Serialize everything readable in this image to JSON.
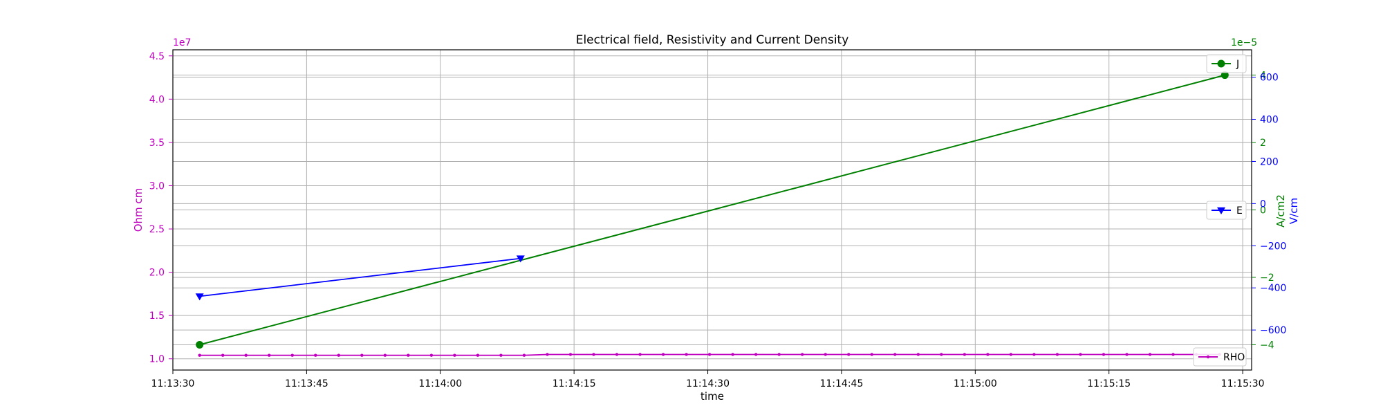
{
  "chart_data": {
    "type": "line",
    "title": "Electrical field, Resistivity and Current Density",
    "xlabel": "time",
    "x_ticks": [
      "11:13:30",
      "11:13:45",
      "11:14:00",
      "11:14:15",
      "11:14:30",
      "11:14:45",
      "11:15:00",
      "11:15:15",
      "11:15:30"
    ],
    "xlim_seconds": [
      -3,
      118
    ],
    "grid": true,
    "axes": {
      "rho": {
        "label": "Ohm cm",
        "color": "#bf00bf",
        "side": "left",
        "offset_text": "1e7",
        "ylim": [
          8.7,
          45.7
        ],
        "ticks": [
          "1.0",
          "1.5",
          "2.0",
          "2.5",
          "3.0",
          "3.5",
          "4.0",
          "4.5"
        ],
        "tick_values": [
          10,
          15,
          20,
          25,
          30,
          35,
          40,
          45
        ]
      },
      "j": {
        "label": "A/cm2",
        "color": "#008000",
        "side": "right",
        "offset_text": "1e−5",
        "ylim": [
          -4.75,
          4.75
        ],
        "ticks": [
          "−4",
          "−2",
          "0",
          "2",
          "4"
        ],
        "tick_values": [
          -4,
          -2,
          0,
          2,
          4
        ]
      },
      "e": {
        "label": "V/cm",
        "color": "#0000ff",
        "side": "right",
        "ylim": [
          -790,
          730
        ],
        "ticks": [
          "−600",
          "−400",
          "−200",
          "0",
          "200",
          "400",
          "600"
        ],
        "tick_values": [
          -600,
          -400,
          -200,
          0,
          200,
          400,
          600
        ]
      }
    },
    "legend": [
      {
        "name": "J",
        "position": "top-right"
      },
      {
        "name": "E",
        "position": "center-right"
      },
      {
        "name": "RHO",
        "position": "bottom-right"
      }
    ],
    "series": [
      {
        "name": "RHO",
        "axis": "rho",
        "color": "#bf00bf",
        "marker": "point",
        "x": [
          0,
          2.6,
          5.2,
          7.8,
          10.4,
          13,
          15.6,
          18.2,
          20.8,
          23.4,
          26,
          28.6,
          31.2,
          33.8,
          36.4,
          39,
          41.6,
          44.2,
          46.8,
          49.4,
          52,
          54.6,
          57.2,
          59.8,
          62.4,
          65,
          67.6,
          70.2,
          72.8,
          75.4,
          78,
          80.6,
          83.2,
          85.8,
          88.4,
          91,
          93.6,
          96.2,
          98.8,
          101.4,
          104,
          106.6,
          109.2,
          111.8,
          114.4
        ],
        "y": [
          10.4,
          10.4,
          10.4,
          10.4,
          10.4,
          10.4,
          10.4,
          10.4,
          10.4,
          10.4,
          10.4,
          10.4,
          10.4,
          10.4,
          10.4,
          10.5,
          10.5,
          10.5,
          10.5,
          10.5,
          10.5,
          10.5,
          10.5,
          10.5,
          10.5,
          10.5,
          10.5,
          10.5,
          10.5,
          10.5,
          10.5,
          10.5,
          10.5,
          10.5,
          10.5,
          10.5,
          10.5,
          10.5,
          10.5,
          10.5,
          10.5,
          10.5,
          10.5,
          10.5,
          10.5
        ]
      },
      {
        "name": "J",
        "axis": "j",
        "color": "#008000",
        "marker": "circle",
        "x": [
          0,
          115
        ],
        "y": [
          -4.0,
          4.0
        ]
      },
      {
        "name": "E",
        "axis": "e",
        "color": "#0000ff",
        "marker": "triangle-down",
        "x": [
          0,
          36
        ],
        "y": [
          -440,
          -260
        ]
      }
    ]
  }
}
